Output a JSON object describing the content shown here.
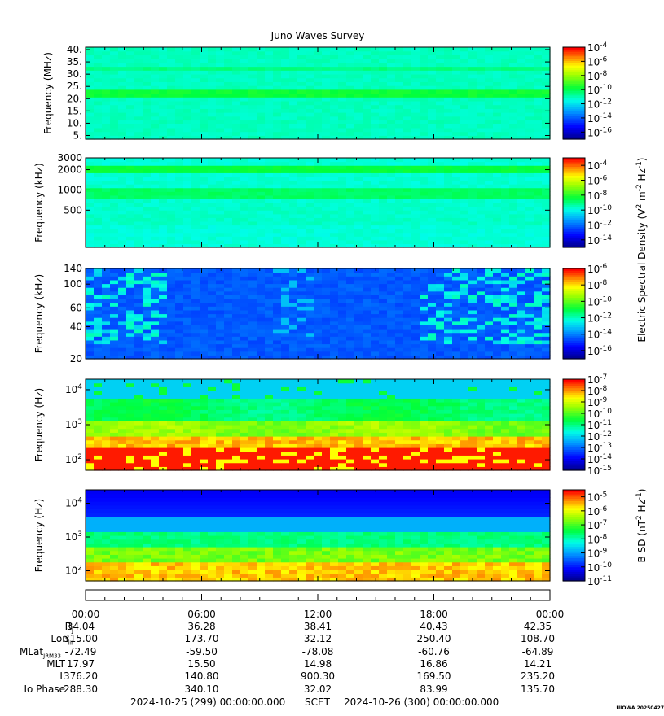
{
  "title": "Juno Waves Survey",
  "colors": {
    "low": "#0000c8",
    "cyan": "#00ffff",
    "green": "#00ff00",
    "yellow": "#ffff00",
    "high": "#ff0000",
    "frame": "#000000"
  },
  "chart_data": [
    {
      "type": "heatmap",
      "ylabel": "Frequency (MHz)",
      "ytick_labels": [
        "5.",
        "10.",
        "15.",
        "20.",
        "25.",
        "30.",
        "35.",
        "40."
      ],
      "ylim": [
        3.5,
        41
      ],
      "yscale": "linear",
      "colorbar": {
        "ticks": [
          "-4",
          "-6",
          "-8",
          "-10",
          "-12",
          "-14",
          "-16"
        ],
        "range_exp": [
          -17,
          -4
        ]
      },
      "mean_level": 0.45
    },
    {
      "type": "heatmap",
      "ylabel": "Frequency (kHz)",
      "ytick_labels": [
        "500",
        "1000",
        "2000",
        "3000"
      ],
      "ylim": [
        140,
        3000
      ],
      "yscale": "log",
      "colorbar": {
        "ticks": [
          "-4",
          "-6",
          "-8",
          "-10",
          "-12",
          "-14"
        ],
        "range_exp": [
          -15,
          -3
        ]
      },
      "mean_level": 0.45
    },
    {
      "type": "heatmap",
      "ylabel": "Frequency (kHz)",
      "ytick_labels": [
        "20",
        "40",
        "60",
        "100",
        "140"
      ],
      "ylim": [
        20,
        140
      ],
      "yscale": "log",
      "colorbar": {
        "ticks": [
          "-6",
          "-8",
          "-10",
          "-12",
          "-14",
          "-16"
        ],
        "range_exp": [
          -17,
          -6
        ]
      },
      "mean_level": 0.22
    },
    {
      "type": "heatmap",
      "ylabel": "Frequency (Hz)",
      "ytick_labels": [
        "2",
        "3",
        "4"
      ],
      "ylim": [
        50,
        20000
      ],
      "yscale": "log",
      "colorbar": {
        "ticks": [
          "-7",
          "-8",
          "-9",
          "-10",
          "-11",
          "-12",
          "-13",
          "-14",
          "-15"
        ],
        "range_exp": [
          -15,
          -7
        ]
      },
      "mean_level": 0.6
    },
    {
      "type": "heatmap",
      "ylabel": "Frequency (Hz)",
      "ytick_labels": [
        "2",
        "3",
        "4"
      ],
      "ylim": [
        50,
        25000
      ],
      "yscale": "log",
      "colorbar": {
        "ticks": [
          "-5",
          "-6",
          "-7",
          "-8",
          "-9",
          "-10",
          "-11"
        ],
        "range_exp": [
          -11,
          -4.5
        ]
      },
      "mean_level": 0.55
    }
  ],
  "colorbar_labels": {
    "electric": "Electric Spectral Density (V",
    "electric_exp1": "2",
    "electric_mid": " m",
    "electric_exp2": "-2",
    "electric_mid2": " Hz",
    "electric_exp3": "-1",
    "electric_end": ")",
    "magnetic": "B SD (nT",
    "magnetic_exp1": "2",
    "magnetic_mid": " Hz",
    "magnetic_exp2": "-1",
    "magnetic_end": ")"
  },
  "ephemeris": {
    "times": [
      "00:00",
      "06:00",
      "12:00",
      "18:00",
      "00:00"
    ],
    "rows": [
      {
        "label": "R",
        "sub": "J",
        "values": [
          "34.04",
          "36.28",
          "38.41",
          "40.43",
          "42.35"
        ]
      },
      {
        "label": "Lon",
        "sub": "III",
        "values": [
          "315.00",
          "173.70",
          "32.12",
          "250.40",
          "108.70"
        ]
      },
      {
        "label": "MLat",
        "sub": "JRM33",
        "values": [
          "-72.49",
          "-59.50",
          "-78.08",
          "-60.76",
          "-64.89"
        ]
      },
      {
        "label": "MLT",
        "sub": "",
        "values": [
          "17.97",
          "15.50",
          "14.98",
          "16.86",
          "14.21"
        ]
      },
      {
        "label": "L",
        "sub": "",
        "values": [
          "376.20",
          "140.80",
          "900.30",
          "169.50",
          "235.20"
        ]
      },
      {
        "label": "Io Phase",
        "sub": "",
        "values": [
          "288.30",
          "340.10",
          "32.02",
          "83.99",
          "135.70"
        ]
      }
    ]
  },
  "footer": {
    "start": "2024-10-25 (299) 00:00:00.000",
    "scet": "SCET",
    "end": "2024-10-26 (300) 00:00:00.000"
  },
  "stamp": "UIOWA 20250427"
}
